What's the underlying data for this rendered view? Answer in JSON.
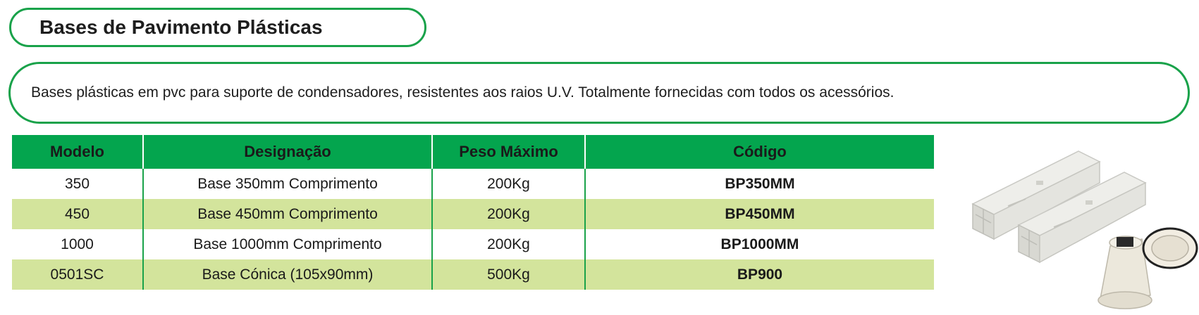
{
  "header": {
    "title": "Bases de Pavimento Plásticas"
  },
  "description": "Bases plásticas em pvc para suporte de condensadores, resistentes aos raios U.V. Totalmente fornecidas com todos os acessórios.",
  "table": {
    "columns": [
      "Modelo",
      "Designação",
      "Peso Máximo",
      "Código"
    ],
    "rows": [
      {
        "modelo": "350",
        "designacao": "Base 350mm Comprimento",
        "peso": "200Kg",
        "codigo": "BP350MM"
      },
      {
        "modelo": "450",
        "designacao": "Base 450mm Comprimento",
        "peso": "200Kg",
        "codigo": "BP450MM"
      },
      {
        "modelo": "1000",
        "designacao": "Base 1000mm Comprimento",
        "peso": "200Kg",
        "codigo": "BP1000MM"
      },
      {
        "modelo": "0501SC",
        "designacao": "Base Cónica (105x90mm)",
        "peso": "500Kg",
        "codigo": "BP900"
      }
    ]
  },
  "colors": {
    "accent_green": "#04a54e",
    "border_green": "#19a24a",
    "alt_row": "#d3e49c"
  },
  "image": {
    "icon": "plastic-base-product-photo"
  }
}
